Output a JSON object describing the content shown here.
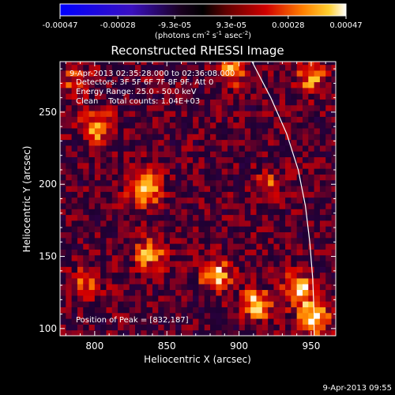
{
  "chart_data": {
    "type": "heatmap",
    "title": "Reconstructed RHESSI Image",
    "xlabel": "Heliocentric X (arcsec)",
    "ylabel": "Heliocentric Y (arcsec)",
    "xlim": [
      776,
      967
    ],
    "ylim": [
      95,
      285
    ],
    "x_ticks": [
      800,
      850,
      900,
      950
    ],
    "y_ticks": [
      100,
      150,
      200,
      250
    ],
    "colorbar": {
      "ticks": [
        "-0.00047",
        "-0.00028",
        "-9.3e-05",
        "9.3e-05",
        "0.00028",
        "0.00047"
      ],
      "range": [
        -0.00047,
        0.00047
      ],
      "units_prefix": "(photons cm",
      "units_exp1": "-2",
      "units_mid": " s",
      "units_exp2": "-1",
      "units_mid2": " asec",
      "units_exp3": "-2",
      "units_suffix": ")"
    },
    "annotations": [
      "9-Apr-2013 02:35:28.000 to 02:36:08.000",
      "Detectors: 3F 5F 6F 7F 8F 9F, Att 0",
      "Energy Range: 25.0 - 50.0 keV",
      "Clean    Total counts: 1.04E+03"
    ],
    "peak_label": "Position of Peak = [832,187]",
    "peak": [
      832,
      187
    ],
    "limb_points": [
      [
        909,
        285
      ],
      [
        922,
        260
      ],
      [
        933,
        235
      ],
      [
        941,
        210
      ],
      [
        946,
        185
      ],
      [
        949,
        160
      ],
      [
        951,
        135
      ],
      [
        952,
        110
      ],
      [
        952,
        95
      ]
    ],
    "hot_spots": [
      {
        "x": 832,
        "y": 195,
        "value": 0.00047
      },
      {
        "x": 800,
        "y": 238,
        "value": 0.00035
      },
      {
        "x": 893,
        "y": 277,
        "value": 0.00028
      },
      {
        "x": 948,
        "y": 272,
        "value": 0.0003
      },
      {
        "x": 918,
        "y": 196,
        "value": 0.00022
      },
      {
        "x": 836,
        "y": 150,
        "value": 0.00032
      },
      {
        "x": 882,
        "y": 135,
        "value": 0.00036
      },
      {
        "x": 940,
        "y": 125,
        "value": 0.00042
      },
      {
        "x": 910,
        "y": 115,
        "value": 0.00038
      },
      {
        "x": 950,
        "y": 105,
        "value": 0.00044
      },
      {
        "x": 793,
        "y": 130,
        "value": 0.00025
      },
      {
        "x": 786,
        "y": 270,
        "value": 0.00022
      }
    ]
  },
  "footer_timestamp": "9-Apr-2013 09:55"
}
